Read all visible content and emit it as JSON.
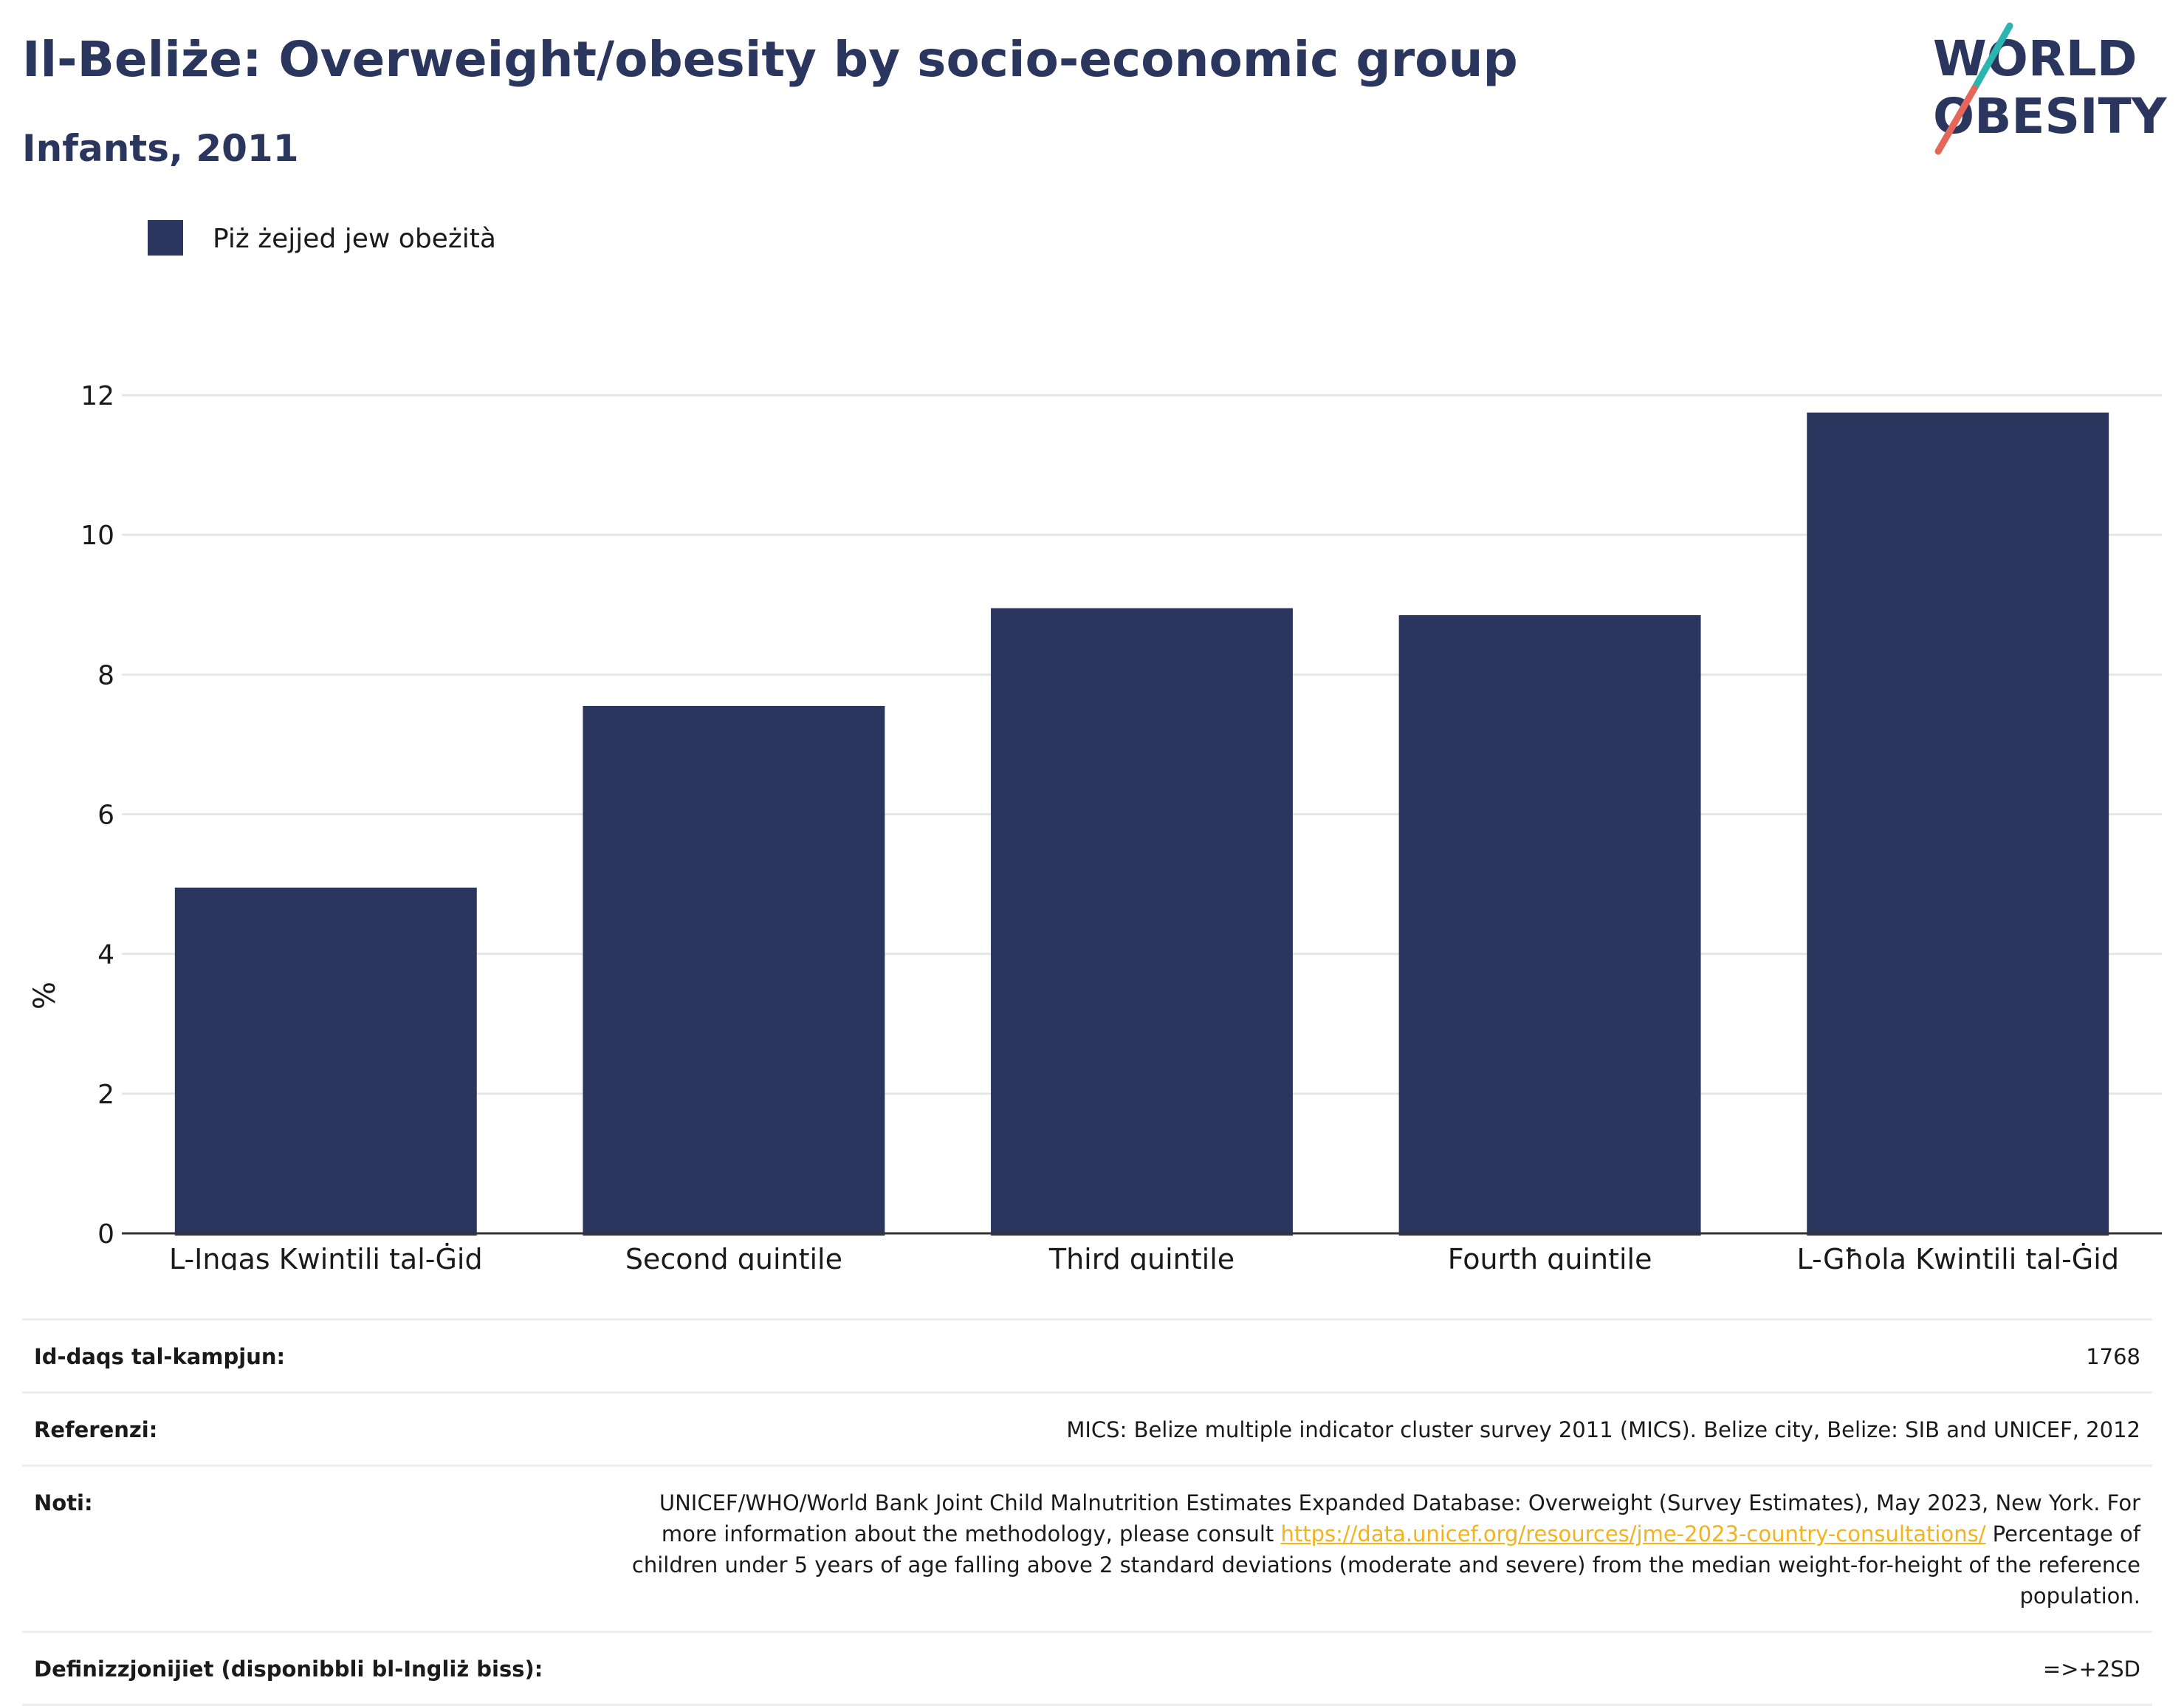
{
  "header": {
    "title": "Il-Beliże: Overweight/obesity by socio-economic group",
    "subtitle": "Infants, 2011"
  },
  "logo": {
    "line1": "WORLD",
    "line2": "OBESITY",
    "colors": {
      "text": "#2b365f",
      "slash_top": "#2bb5b0",
      "slash_bottom": "#e4675a"
    }
  },
  "colors": {
    "bar": "#2b365f",
    "gridline": "#e6e6e6",
    "axis": "#333333",
    "link": "#f2b31c"
  },
  "chart_data": {
    "type": "bar",
    "categories": [
      "L-Inqas Kwintili tal-Ġid",
      "Second quintile",
      "Third quintile",
      "Fourth quintile",
      "L-Għola Kwintili tal-Ġid"
    ],
    "series": [
      {
        "name": "Piż żejjed jew obeżità",
        "values": [
          4.95,
          7.55,
          8.95,
          8.85,
          11.75
        ],
        "color": "#2b365f"
      }
    ],
    "xlabel": "",
    "ylabel": "%",
    "ylim": [
      0,
      12
    ],
    "yticks": [
      0,
      2,
      4,
      6,
      8,
      10,
      12
    ],
    "grid": true,
    "legend_position": "top-left"
  },
  "info": {
    "sample_size": {
      "label": "Id-daqs tal-kampjun:",
      "value": "1768"
    },
    "references": {
      "label": "Referenzi:",
      "value": "MICS: Belize multiple indicator cluster survey 2011 (MICS). Belize city, Belize: SIB and UNICEF, 2012"
    },
    "notes": {
      "label": "Noti:",
      "text_before": "UNICEF/WHO/World Bank Joint Child Malnutrition Estimates Expanded Database: Overweight (Survey Estimates), May 2023, New York. For more information about the methodology, please consult ",
      "link": "https://data.unicef.org/resources/jme-2023-country-consultations/",
      "text_after": " Percentage of children under 5 years of age falling above 2 standard deviations (moderate and severe) from the median weight-for-height of the reference population."
    },
    "definitions": {
      "label": "Definizzjonijiet (disponibbli bl-Ingliż biss):",
      "value": "=>+2SD"
    }
  }
}
